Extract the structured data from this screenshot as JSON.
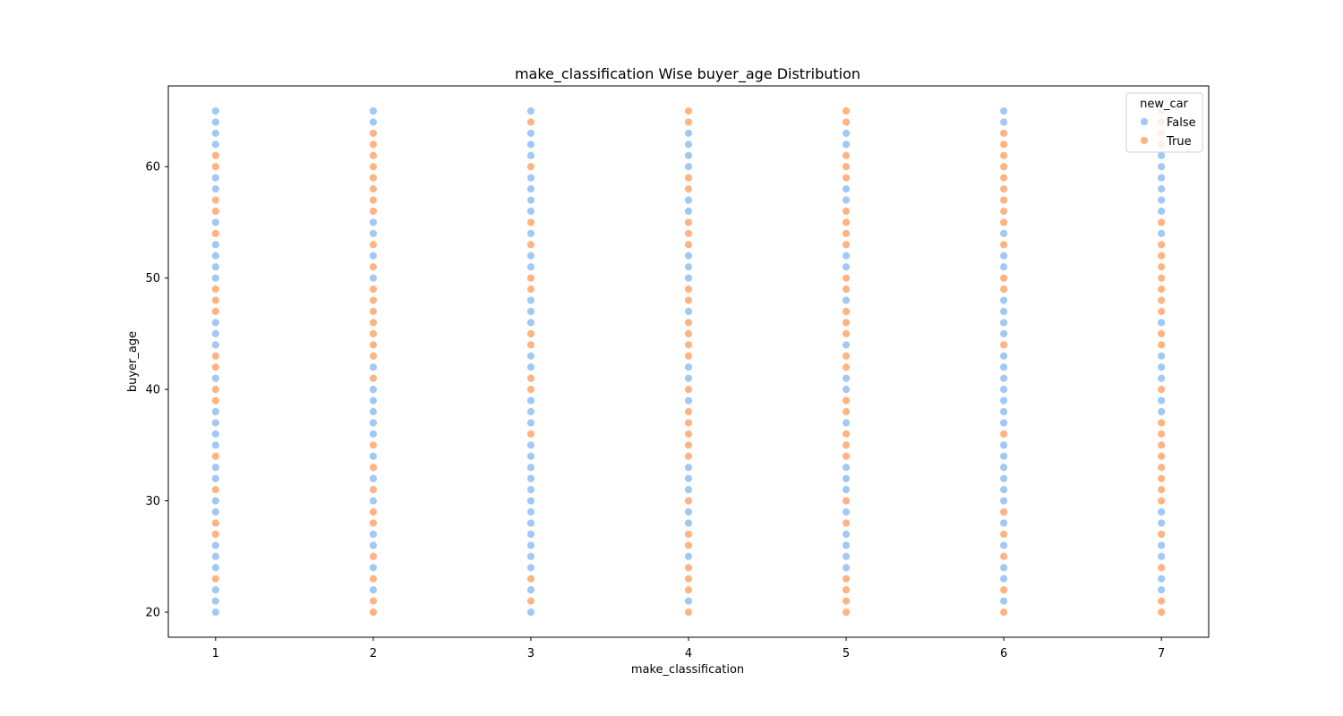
{
  "chart_data": {
    "type": "scatter",
    "title": "make_classification Wise buyer_age Distribution",
    "xlabel": "make_classification",
    "ylabel": "buyer_age",
    "x_ticks": [
      "1",
      "2",
      "3",
      "4",
      "5",
      "6",
      "7"
    ],
    "y_ticks": [
      "20",
      "30",
      "40",
      "50",
      "60"
    ],
    "xlim": [
      0.7,
      7.3
    ],
    "ylim": [
      17.75,
      67.25
    ],
    "grid": false,
    "legend": {
      "title": "new_car",
      "placement": "top-right",
      "entries": [
        {
          "label": "False",
          "color": "#a1c9f4"
        },
        {
          "label": "True",
          "color": "#ffb482"
        }
      ]
    },
    "series": [
      {
        "name": "False",
        "color": "#a1c9f4",
        "points": {
          "1": [
            20,
            21,
            22,
            24,
            25,
            26,
            29,
            30,
            32,
            33,
            35,
            36,
            37,
            38,
            41,
            44,
            45,
            46,
            50,
            51,
            52,
            53,
            55,
            58,
            59,
            62,
            63,
            64,
            65
          ],
          "2": [
            22,
            24,
            26,
            27,
            30,
            32,
            34,
            36,
            37,
            38,
            39,
            40,
            42,
            50,
            52,
            54,
            55,
            64,
            65
          ],
          "3": [
            20,
            22,
            24,
            25,
            26,
            27,
            28,
            29,
            30,
            31,
            32,
            33,
            34,
            35,
            37,
            38,
            39,
            42,
            43,
            46,
            47,
            48,
            51,
            52,
            54,
            56,
            57,
            58,
            59,
            61,
            62,
            63,
            65
          ],
          "4": [
            21,
            25,
            28,
            29,
            31,
            32,
            33,
            39,
            41,
            42,
            47,
            50,
            51,
            52,
            56,
            57,
            60,
            61,
            62,
            63
          ],
          "5": [
            24,
            25,
            26,
            27,
            29,
            31,
            32,
            33,
            37,
            40,
            41,
            44,
            48,
            51,
            52,
            57,
            58,
            62,
            63
          ],
          "6": [
            21,
            23,
            24,
            26,
            28,
            30,
            31,
            32,
            33,
            34,
            35,
            37,
            38,
            39,
            40,
            41,
            42,
            43,
            45,
            46,
            47,
            48,
            51,
            52,
            54,
            64,
            65
          ],
          "7": [
            22,
            23,
            25,
            26,
            28,
            29,
            38,
            39,
            41,
            42,
            43,
            46,
            54,
            56,
            57,
            58,
            59,
            60,
            61
          ]
        }
      },
      {
        "name": "True",
        "color": "#ffb482",
        "points": {
          "1": [
            23,
            27,
            28,
            31,
            34,
            39,
            40,
            42,
            43,
            47,
            48,
            49,
            54,
            56,
            57,
            60,
            61
          ],
          "2": [
            20,
            21,
            23,
            25,
            28,
            29,
            31,
            33,
            35,
            41,
            43,
            44,
            45,
            46,
            47,
            48,
            49,
            51,
            53,
            56,
            57,
            58,
            59,
            60,
            61,
            62,
            63
          ],
          "3": [
            21,
            23,
            36,
            40,
            41,
            44,
            45,
            49,
            50,
            53,
            55,
            60,
            64
          ],
          "4": [
            20,
            22,
            23,
            24,
            26,
            27,
            30,
            34,
            35,
            36,
            37,
            38,
            40,
            43,
            44,
            45,
            46,
            48,
            49,
            53,
            54,
            55,
            58,
            59,
            64,
            65
          ],
          "5": [
            20,
            21,
            22,
            23,
            28,
            30,
            34,
            35,
            36,
            38,
            39,
            42,
            43,
            45,
            46,
            47,
            49,
            50,
            53,
            54,
            55,
            56,
            59,
            60,
            61,
            64,
            65
          ],
          "6": [
            20,
            22,
            25,
            27,
            29,
            36,
            44,
            49,
            50,
            53,
            55,
            56,
            57,
            58,
            59,
            60,
            61,
            62,
            63
          ],
          "7": [
            20,
            21,
            24,
            27,
            30,
            31,
            32,
            33,
            34,
            35,
            36,
            37,
            40,
            44,
            45,
            47,
            48,
            49,
            50,
            51,
            52,
            53,
            55,
            62,
            63,
            64,
            65
          ]
        }
      }
    ]
  }
}
